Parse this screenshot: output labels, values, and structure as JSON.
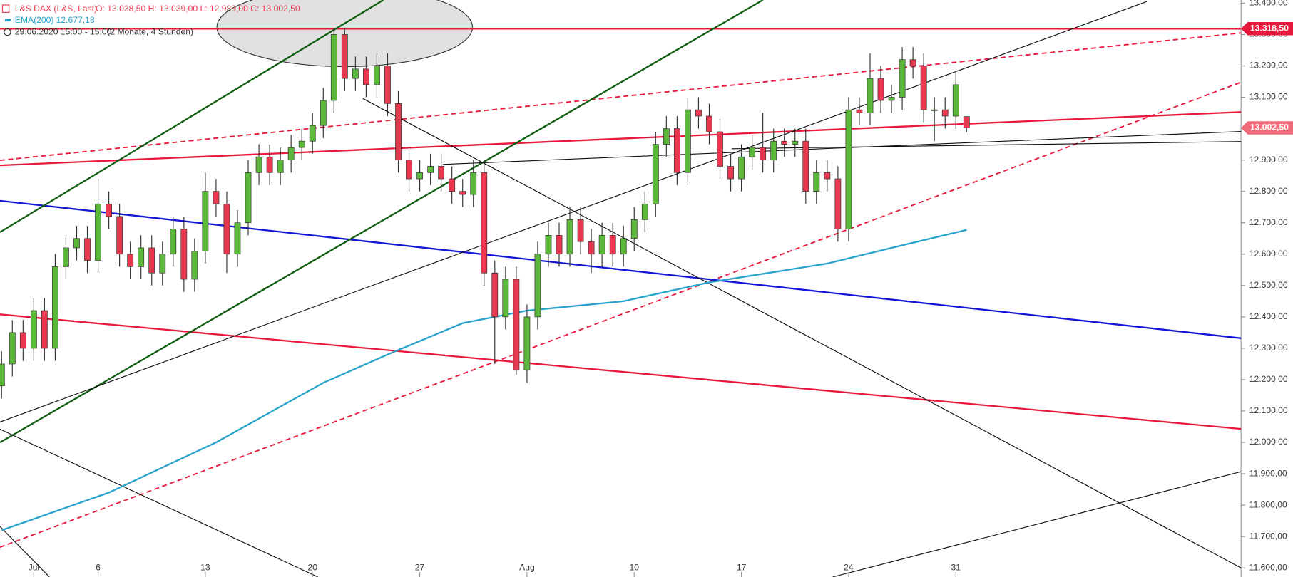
{
  "chart_data": {
    "type": "candlestick",
    "header": {
      "symbol": "L&S DAX (L&S, Last)",
      "ohlc": "O: 13.038,50  H: 13.039,00  L: 12.989,00  C: 13.002,50",
      "period": "29.06.2020 15:00 - 15:00",
      "range": "(2 Monate, 4 Stunden)"
    },
    "xlim": [
      -0.15,
      115.6
    ],
    "ylim": [
      11571,
      13410
    ],
    "yticks": [
      {
        "value": 11600,
        "label": "11.600,00"
      },
      {
        "value": 11700,
        "label": "11.700,00"
      },
      {
        "value": 11800,
        "label": "11.800,00"
      },
      {
        "value": 11900,
        "label": "11.900,00"
      },
      {
        "value": 12000,
        "label": "12.000,00"
      },
      {
        "value": 12100,
        "label": "12.100,00"
      },
      {
        "value": 12200,
        "label": "12.200,00"
      },
      {
        "value": 12300,
        "label": "12.300,00"
      },
      {
        "value": 12400,
        "label": "12.400,00"
      },
      {
        "value": 12500,
        "label": "12.500,00"
      },
      {
        "value": 12600,
        "label": "12.600,00"
      },
      {
        "value": 12700,
        "label": "12.700,00"
      },
      {
        "value": 12800,
        "label": "12.800,00"
      },
      {
        "value": 12900,
        "label": "12.900,00"
      },
      {
        "value": 13000,
        "label": "13.000,00"
      },
      {
        "value": 13100,
        "label": "13.100,00"
      },
      {
        "value": 13200,
        "label": "13.200,00"
      },
      {
        "value": 13300,
        "label": "13.300,00"
      },
      {
        "value": 13400,
        "label": "13.400,00"
      }
    ],
    "categories": [
      null,
      null,
      null,
      "Jul",
      null,
      null,
      null,
      null,
      null,
      "6",
      null,
      null,
      null,
      null,
      null,
      null,
      null,
      null,
      null,
      "13",
      null,
      null,
      null,
      null,
      null,
      null,
      null,
      null,
      null,
      "20",
      null,
      null,
      null,
      null,
      null,
      null,
      null,
      null,
      null,
      "27",
      null,
      null,
      null,
      null,
      null,
      null,
      null,
      null,
      null,
      "Aug",
      null,
      null,
      null,
      null,
      null,
      null,
      null,
      null,
      null,
      "10",
      null,
      null,
      null,
      null,
      null,
      null,
      null,
      null,
      null,
      "17",
      null,
      null,
      null,
      null,
      null,
      null,
      null,
      null,
      null,
      "24",
      null,
      null,
      null,
      null,
      null,
      null,
      null,
      null,
      null,
      "31",
      null
    ],
    "up_color": "#5cb83a",
    "down_color": "#e8384f",
    "open": [
      12180,
      12250,
      12350,
      12300,
      12420,
      12300,
      12560,
      12620,
      12650,
      12580,
      12760,
      12720,
      12600,
      12560,
      12620,
      12540,
      12600,
      12680,
      12520,
      12610,
      12800,
      12760,
      12600,
      12700,
      12860,
      12910,
      12860,
      12900,
      12940,
      12960,
      13010,
      13090,
      13300,
      13160,
      13190,
      13140,
      13200,
      13080,
      12900,
      12840,
      12860,
      12880,
      12840,
      12800,
      12790,
      12860,
      12540,
      12400,
      12520,
      12230,
      12400,
      12600,
      12660,
      12600,
      12710,
      12640,
      12600,
      12660,
      12600,
      12650,
      12710,
      12760,
      12950,
      13000,
      12860,
      13060,
      13040,
      12990,
      12880,
      12840,
      12910,
      12940,
      12900,
      12960,
      12950,
      12960,
      12800,
      12860,
      12840,
      12680,
      13060,
      13050,
      13160,
      13090,
      13100,
      13220,
      13200,
      13060,
      13060,
      13040,
      13038.5
    ],
    "high": [
      12290,
      12390,
      12390,
      12460,
      12460,
      12600,
      12660,
      12690,
      12690,
      12840,
      12800,
      12760,
      12640,
      12660,
      12660,
      12640,
      12720,
      12720,
      12650,
      12860,
      12840,
      12800,
      12740,
      12900,
      12950,
      12950,
      12940,
      12980,
      13000,
      13050,
      13130,
      13318.5,
      13320,
      13230,
      13230,
      13240,
      13240,
      13120,
      12940,
      12900,
      12920,
      12920,
      12880,
      12840,
      12900,
      12900,
      12580,
      12560,
      12560,
      12440,
      12640,
      12700,
      12700,
      12750,
      12750,
      12680,
      12700,
      12700,
      12690,
      12750,
      12800,
      12990,
      13040,
      13040,
      13100,
      13100,
      13080,
      13030,
      12920,
      12950,
      12980,
      13050,
      13000,
      13000,
      13000,
      13000,
      12900,
      12900,
      12880,
      13100,
      13100,
      13240,
      13200,
      13140,
      13260,
      13260,
      13240,
      13100,
      13100,
      13180,
      13039
    ],
    "low": [
      12140,
      12210,
      12260,
      12260,
      12260,
      12260,
      12520,
      12580,
      12540,
      12540,
      12680,
      12560,
      12520,
      12520,
      12500,
      12500,
      12560,
      12480,
      12480,
      12570,
      12720,
      12540,
      12560,
      12660,
      12820,
      12820,
      12820,
      12860,
      12900,
      12920,
      12970,
      13050,
      13120,
      13120,
      13100,
      13100,
      13040,
      12860,
      12800,
      12800,
      12820,
      12800,
      12760,
      12750,
      12750,
      12500,
      12250,
      12360,
      12215,
      12190,
      12360,
      12560,
      12560,
      12560,
      12600,
      12540,
      12560,
      12560,
      12560,
      12610,
      12670,
      12720,
      12910,
      12820,
      12820,
      13000,
      12950,
      12840,
      12800,
      12800,
      12870,
      12860,
      12860,
      12910,
      12910,
      12760,
      12760,
      12800,
      12640,
      12640,
      13010,
      13010,
      13050,
      13050,
      13060,
      13160,
      13020,
      12960,
      13000,
      13000,
      12989
    ],
    "close": [
      12250,
      12350,
      12300,
      12420,
      12300,
      12560,
      12620,
      12650,
      12580,
      12760,
      12720,
      12600,
      12560,
      12620,
      12540,
      12600,
      12680,
      12520,
      12610,
      12800,
      12760,
      12600,
      12700,
      12860,
      12910,
      12860,
      12900,
      12940,
      12960,
      13010,
      13090,
      13300,
      13160,
      13190,
      13140,
      13200,
      13080,
      12900,
      12840,
      12860,
      12880,
      12840,
      12800,
      12790,
      12860,
      12540,
      12400,
      12520,
      12230,
      12400,
      12600,
      12660,
      12600,
      12710,
      12640,
      12600,
      12660,
      12600,
      12650,
      12710,
      12760,
      12950,
      13000,
      12860,
      13060,
      13040,
      12990,
      12880,
      12840,
      12910,
      12940,
      12900,
      12960,
      12950,
      12960,
      12800,
      12860,
      12840,
      12680,
      13060,
      13050,
      13160,
      13090,
      13100,
      13220,
      13200,
      13060,
      13060,
      13040,
      13140,
      13002.5
    ],
    "series": [
      {
        "name": "EMA(200)",
        "color": "#2aa3cc",
        "value_label": "12.677,18",
        "x": [
          0,
          10,
          20,
          30,
          36,
          43,
          49,
          58,
          66,
          77,
          83,
          90
        ],
        "values": [
          11720,
          11840,
          12000,
          12190,
          12280,
          12380,
          12420,
          12450,
          12510,
          12570,
          12620,
          12677.18
        ]
      }
    ],
    "lines": [
      {
        "color": "#e8193c",
        "width": 2,
        "dash": false,
        "x": [
          -0.15,
          115.6
        ],
        "values": [
          13318.5,
          13318.5
        ]
      },
      {
        "color": "#e8193c",
        "width": 2,
        "dash": false,
        "x": [
          -0.15,
          115.6
        ],
        "values": [
          12883,
          13053
        ]
      },
      {
        "color": "#e8193c",
        "width": 1.6,
        "dash": true,
        "x": [
          -0.15,
          115.6
        ],
        "values": [
          12899,
          13305
        ]
      },
      {
        "color": "#e8193c",
        "width": 1.6,
        "dash": true,
        "x": [
          -0.15,
          115.6
        ],
        "values": [
          11666,
          13148
        ]
      },
      {
        "color": "#e8193c",
        "width": 2,
        "dash": false,
        "x": [
          -0.15,
          115.6
        ],
        "values": [
          12408,
          12043
        ]
      },
      {
        "color": "#1515d8",
        "width": 2,
        "dash": false,
        "x": [
          -0.15,
          115.6
        ],
        "values": [
          12770,
          12332
        ]
      },
      {
        "color": "#0f5e0f",
        "width": 2,
        "dash": false,
        "x": [
          -0.15,
          35.6
        ],
        "values": [
          12670,
          13410
        ]
      },
      {
        "color": "#0f5e0f",
        "width": 2,
        "dash": false,
        "x": [
          -0.15,
          71
        ],
        "values": [
          12000,
          13410
        ]
      },
      {
        "color": "#111111",
        "width": 1,
        "dash": false,
        "x": [
          -0.15,
          106.8
        ],
        "values": [
          12065,
          13405
        ]
      },
      {
        "color": "#111111",
        "width": 1,
        "dash": false,
        "x": [
          33.7,
          115.6
        ],
        "values": [
          13096,
          11600
        ]
      },
      {
        "color": "#111111",
        "width": 1,
        "dash": false,
        "x": [
          -0.15,
          29.5
        ],
        "values": [
          12042,
          11571
        ]
      },
      {
        "color": "#111111",
        "width": 1,
        "dash": false,
        "x": [
          -0.15,
          4.46
        ],
        "values": [
          11732,
          11571
        ]
      },
      {
        "color": "#111111",
        "width": 1,
        "dash": false,
        "x": [
          77.5,
          115.6
        ],
        "values": [
          11571,
          11907
        ]
      },
      {
        "color": "#111111",
        "width": 1,
        "dash": false,
        "x": [
          41.15,
          115.6
        ],
        "values": [
          12886,
          12991
        ]
      },
      {
        "color": "#111111",
        "width": 1,
        "dash": false,
        "x": [
          68.1,
          115.6
        ],
        "values": [
          12936,
          12959
        ]
      }
    ],
    "price_labels": [
      {
        "value": 13318.5,
        "label": "13.318,50",
        "color": "#e8193c"
      },
      {
        "value": 13002.5,
        "label": "13.002,50",
        "color": "#f06a7a"
      }
    ]
  }
}
